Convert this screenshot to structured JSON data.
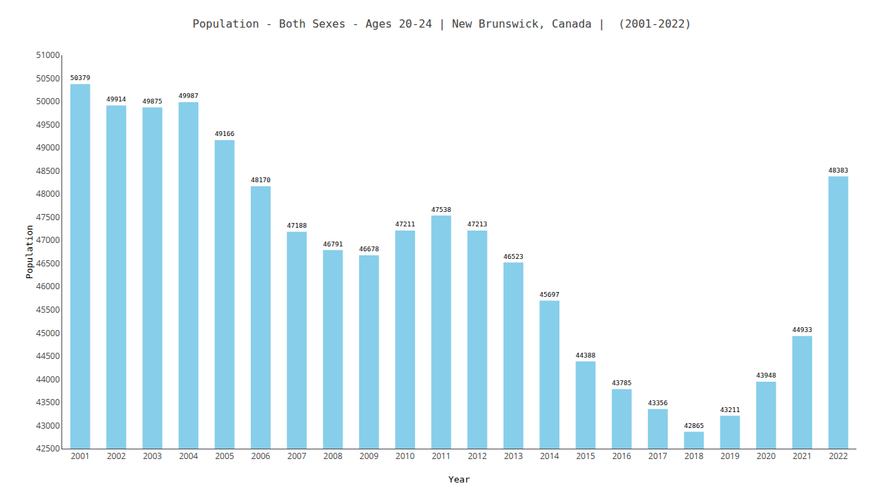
{
  "chart_data": {
    "type": "bar",
    "title": "Population - Both Sexes - Ages 20-24 | New Brunswick, Canada |  (2001-2022)",
    "x_label": "Year",
    "y_label": "Population",
    "categories": [
      "2001",
      "2002",
      "2003",
      "2004",
      "2005",
      "2006",
      "2007",
      "2008",
      "2009",
      "2010",
      "2011",
      "2012",
      "2013",
      "2014",
      "2015",
      "2016",
      "2017",
      "2018",
      "2019",
      "2020",
      "2021",
      "2022"
    ],
    "values": [
      50379,
      49914,
      49875,
      49987,
      49166,
      48170,
      47188,
      46791,
      46678,
      47211,
      47538,
      47213,
      46523,
      45697,
      44388,
      43785,
      43356,
      42865,
      43211,
      43948,
      44933,
      48383
    ],
    "color": "#87ceeb",
    "ylim": [
      42500,
      51000
    ],
    "yticks": [
      42500,
      43000,
      43500,
      44000,
      44500,
      45000,
      45500,
      46000,
      46500,
      47000,
      47500,
      48000,
      48500,
      49000,
      49500,
      50000,
      50500,
      51000
    ],
    "grid": false,
    "data_labels": true
  }
}
